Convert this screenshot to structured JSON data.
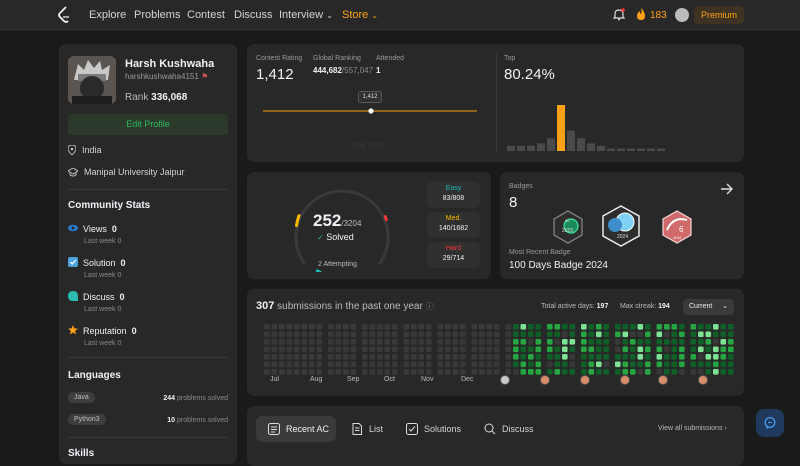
{
  "nav": {
    "links": [
      "Explore",
      "Problems",
      "Contest",
      "Discuss",
      "Interview",
      "Store"
    ],
    "streak": "183",
    "premium": "Premium"
  },
  "profile": {
    "name": "Harsh Kushwaha",
    "handle": "harshkushwaha4151",
    "rank_label": "Rank",
    "rank_value": "336,068",
    "edit_label": "Edit Profile",
    "location": "India",
    "school": "Manipal University Jaipur"
  },
  "community": {
    "title": "Community Stats",
    "items": [
      {
        "label": "Views",
        "value": "0",
        "sub_label": "Last week",
        "sub_value": "0",
        "color": "#2a7cd3"
      },
      {
        "label": "Solution",
        "value": "0",
        "sub_label": "Last week",
        "sub_value": "0",
        "color": "#4aa3df"
      },
      {
        "label": "Discuss",
        "value": "0",
        "sub_label": "Last week",
        "sub_value": "0",
        "color": "#2cbbb0"
      },
      {
        "label": "Reputation",
        "value": "0",
        "sub_label": "Last week",
        "sub_value": "0",
        "color": "#ffa116"
      }
    ]
  },
  "languages": {
    "title": "Languages",
    "items": [
      {
        "name": "Java",
        "count": "244",
        "suffix": "problems solved"
      },
      {
        "name": "Python3",
        "count": "10",
        "suffix": "problems solved"
      }
    ]
  },
  "skills": {
    "title": "Skills"
  },
  "contest": {
    "rating_label": "Contest Rating",
    "rating": "1,412",
    "global_label": "Global Ranking",
    "global_rank": "444,682",
    "global_total": "/557,047",
    "attended_label": "Attended",
    "attended": "1",
    "top_label": "Top",
    "top_value": "80.24%",
    "tooltip": "1,412",
    "axis_date": "May 2025",
    "histogram": [
      2,
      2,
      2,
      3,
      5,
      18,
      8,
      5,
      3,
      2,
      1,
      1,
      1,
      1,
      1,
      1
    ],
    "highlight_index": 5
  },
  "solved": {
    "count": "252",
    "total": "/3204",
    "label": "Solved",
    "attempting": "2 Attempting",
    "easy": {
      "label": "Easy",
      "value": "83/808",
      "solved": 83,
      "total": 808,
      "color": "#1cbaba"
    },
    "medium": {
      "label": "Med.",
      "value": "140/1682",
      "solved": 140,
      "total": 1682,
      "color": "#ffb700"
    },
    "hard": {
      "label": "Hard",
      "value": "29/714",
      "solved": 29,
      "total": 714,
      "color": "#f63737"
    }
  },
  "badges": {
    "title": "Badges",
    "count": "8",
    "recent_label": "Most Recent Badge",
    "recent_value": "100 Days Badge 2024",
    "items": [
      {
        "name": "2025 50 days badge",
        "text": "50",
        "caption": "2025"
      },
      {
        "name": "100 days badge 2024",
        "text": "100",
        "caption": "2024"
      },
      {
        "name": "June daily challenge badge",
        "text": "6",
        "caption": "JUN"
      }
    ]
  },
  "heatmap": {
    "count": "307",
    "label": "submissions in the past one year",
    "active_label": "Total active days:",
    "active_value": "197",
    "streak_label": "Max streak:",
    "streak_value": "194",
    "select": "Current",
    "months": [
      "Jul",
      "Aug",
      "Sep",
      "Oct",
      "Nov",
      "Dec",
      "",
      "",
      "",
      "",
      "",
      ""
    ]
  },
  "tabs": {
    "items": [
      "Recent AC",
      "List",
      "Solutions",
      "Discuss"
    ],
    "view_all": "View all submissions"
  }
}
